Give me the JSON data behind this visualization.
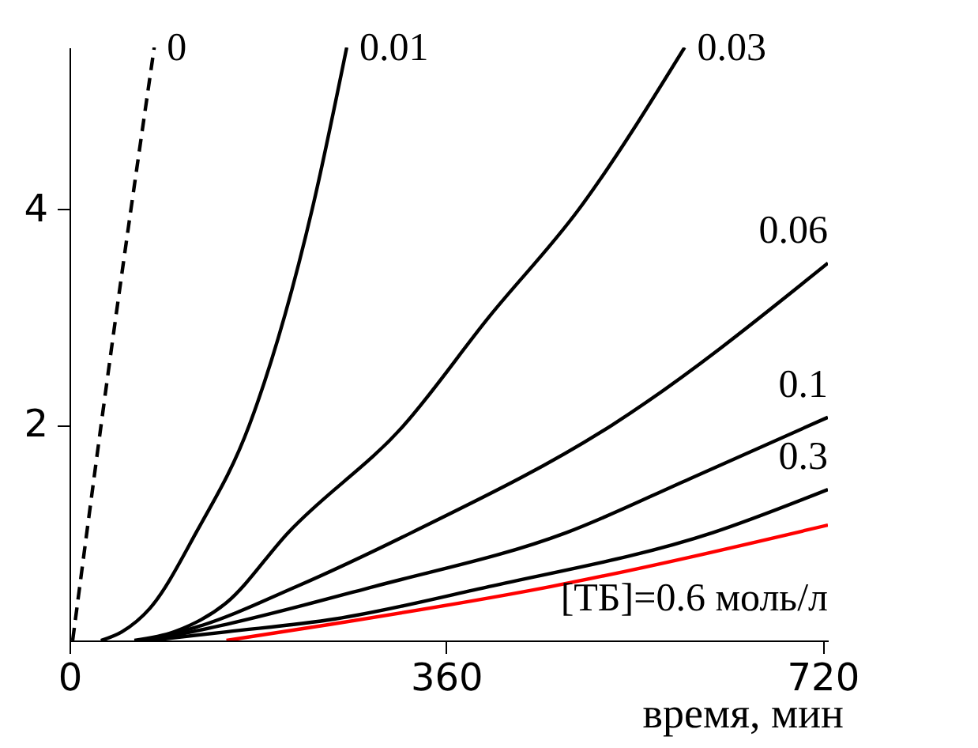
{
  "chart_data": {
    "type": "line",
    "xlabel": "время, мин",
    "xlim": [
      0,
      725
    ],
    "ylim": [
      0,
      5.5
    ],
    "xticks": [
      0,
      360,
      720
    ],
    "yticks": [
      2,
      4
    ],
    "grid": false,
    "legend": false,
    "marker": "none",
    "series": [
      {
        "name": "0",
        "color": "#000000",
        "line_style": "dashed",
        "x": [
          3,
          40,
          81
        ],
        "values": [
          0,
          2.7,
          5.5
        ]
      },
      {
        "name": "0.01",
        "color": "#000000",
        "x": [
          30,
          50,
          77,
          121,
          172,
          232,
          265
        ],
        "values": [
          0,
          0.08,
          0.3,
          1,
          2,
          4,
          5.5
        ]
      },
      {
        "name": "0.03",
        "color": "#000000",
        "x": [
          62,
          100,
          150,
          209,
          320,
          401,
          487,
          588
        ],
        "values": [
          0,
          0.08,
          0.35,
          1,
          2,
          3,
          4,
          5.5
        ]
      },
      {
        "name": "0.06",
        "color": "#000000",
        "x": [
          69,
          120,
          217,
          327,
          519,
          725
        ],
        "values": [
          0,
          0.12,
          0.5,
          1,
          2,
          3.5
        ]
      },
      {
        "name": "0.1",
        "color": "#000000",
        "x": [
          77,
          150,
          291,
          475,
          593,
          725
        ],
        "values": [
          0,
          0.15,
          0.5,
          1,
          1.5,
          2.07
        ]
      },
      {
        "name": "0.3",
        "color": "#000000",
        "x": [
          77,
          150,
          254,
          401,
          615,
          725
        ],
        "values": [
          0,
          0.08,
          0.2,
          0.5,
          1,
          1.4
        ]
      },
      {
        "name": "[ТБ]=0.6 моль/л",
        "color": "#ff0000",
        "x": [
          150,
          250,
          460,
          725
        ],
        "values": [
          0,
          0.15,
          0.5,
          1.07
        ]
      }
    ]
  }
}
